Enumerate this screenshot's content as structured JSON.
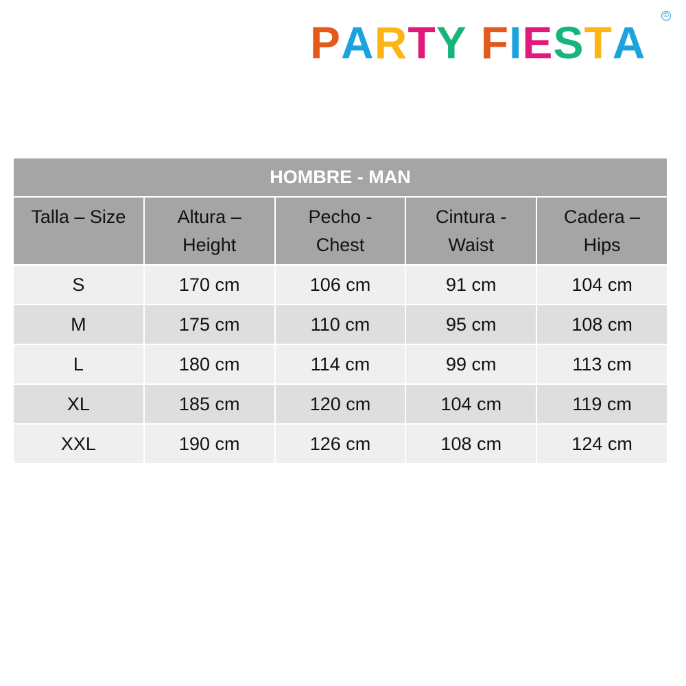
{
  "logo": {
    "text": "PARTY FIESTA",
    "letters_left": [
      {
        "ch": "P",
        "color": "#e2591b"
      },
      {
        "ch": "A",
        "color": "#1ba3dd"
      },
      {
        "ch": "R",
        "color": "#fdb515"
      },
      {
        "ch": "T",
        "color": "#e0197a"
      },
      {
        "ch": "Y",
        "color": "#16b57b"
      }
    ],
    "letters_right": [
      {
        "ch": "F",
        "color": "#e2591b"
      },
      {
        "ch": "I",
        "color": "#1ba3dd"
      },
      {
        "ch": "E",
        "color": "#e0197a"
      },
      {
        "ch": "S",
        "color": "#16b57b"
      },
      {
        "ch": "T",
        "color": "#fdb515"
      },
      {
        "ch": "A",
        "color": "#1ba3dd"
      }
    ],
    "copyright": "c"
  },
  "table": {
    "title": "HOMBRE - MAN",
    "headers": [
      [
        "Talla – Size",
        ""
      ],
      [
        "Altura –",
        "Height"
      ],
      [
        "Pecho -",
        "Chest"
      ],
      [
        "Cintura -",
        "Waist"
      ],
      [
        "Cadera –",
        "Hips"
      ]
    ],
    "rows": [
      [
        "S",
        "170 cm",
        "106 cm",
        "91 cm",
        "104 cm"
      ],
      [
        "M",
        "175 cm",
        "110 cm",
        "95 cm",
        "108 cm"
      ],
      [
        "L",
        "180 cm",
        "114 cm",
        "99 cm",
        "113 cm"
      ],
      [
        "XL",
        "185 cm",
        "120 cm",
        "104 cm",
        "119 cm"
      ],
      [
        "XXL",
        "190 cm",
        "126 cm",
        "108 cm",
        "124 cm"
      ]
    ]
  }
}
